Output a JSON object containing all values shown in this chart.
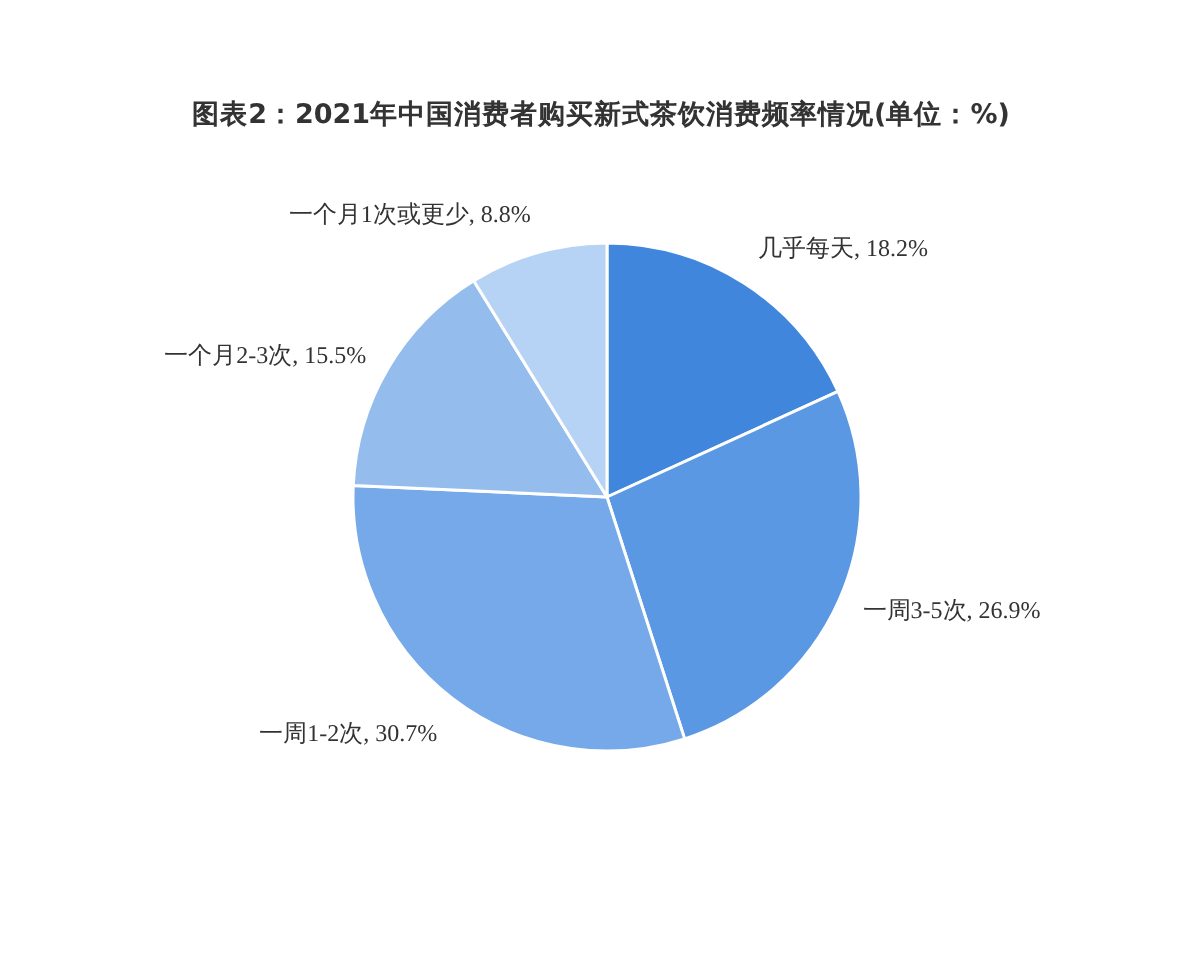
{
  "chart_data": {
    "type": "pie",
    "title": "图表2：2021年中国消费者购买新式茶饮消费频率情况(单位：%)",
    "categories": [
      "几乎每天",
      "一周3-5次",
      "一周1-2次",
      "一个月2-3次",
      "一个月1次或更少"
    ],
    "values": [
      18.2,
      26.9,
      30.7,
      15.5,
      8.8
    ],
    "value_labels": [
      "18.2%",
      "26.9%",
      "30.7%",
      "15.5%",
      "8.8%"
    ],
    "colors": [
      "#3f86dc",
      "#5a98e3",
      "#75a9e9",
      "#94bdee",
      "#b6d2f4"
    ]
  }
}
